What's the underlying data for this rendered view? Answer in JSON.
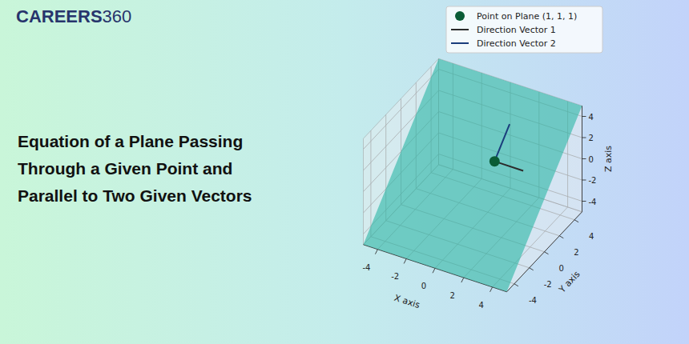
{
  "brand": [
    "CAREERS",
    "360"
  ],
  "headline": [
    "Equation of a Plane Passing",
    "Through a Given Point and",
    "Parallel to Two Given Vectors"
  ],
  "chart_data": {
    "type": "3d",
    "x_label": "X axis",
    "y_label": "Y axis",
    "z_label": "Z axis",
    "xlim": [
      -5,
      5
    ],
    "ylim": [
      -5,
      5
    ],
    "zlim": [
      -5,
      5
    ],
    "xticks": [
      -4,
      -2,
      0,
      2,
      4
    ],
    "yticks": [
      -4,
      -2,
      0,
      2,
      4
    ],
    "zticks": [
      -4,
      -2,
      0,
      2,
      4
    ],
    "grid": true,
    "legend": "upper right",
    "color": "#2ab5a5",
    "series": [
      {
        "name": "Point on Plane (1, 1, 1)",
        "type": "scatter",
        "marker": "circle",
        "color": "#0a5c36",
        "values": [
          1,
          1,
          1
        ]
      },
      {
        "name": "Direction Vector 1",
        "type": "vector",
        "color": "#2b2b2b",
        "values": [
          2,
          0,
          0
        ]
      },
      {
        "name": "Direction Vector 2",
        "type": "vector",
        "color": "#1a3d7c",
        "values": [
          0,
          2,
          2
        ]
      }
    ]
  }
}
